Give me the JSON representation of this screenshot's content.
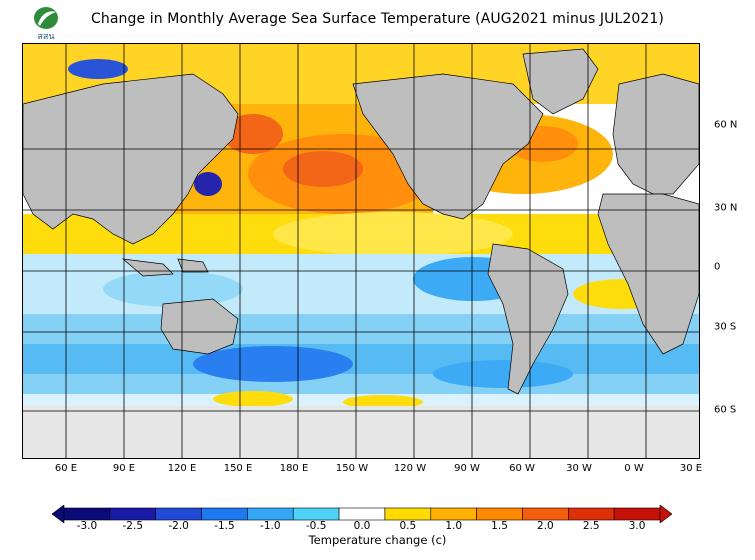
{
  "header": {
    "title": "Change in Monthly Average Sea Surface Temperature (AUG2021 minus JUL2021)",
    "logo_text": "สสน"
  },
  "map": {
    "lon_labels": [
      "60 E",
      "90 E",
      "120 E",
      "150 E",
      "180 E",
      "150 W",
      "120 W",
      "90 W",
      "60 W",
      "30 W",
      "0 W",
      "30 E"
    ],
    "lat_labels": [
      "60 N",
      "30 N",
      "0",
      "30 S",
      "60 S"
    ],
    "colors": {
      "land": "#bebebe",
      "ice": "#e6e6e6",
      "background": "#ffffff",
      "grid": "#000000"
    }
  },
  "colorbar": {
    "label": "Temperature change  (c)",
    "ticks": [
      "-3.0",
      "-2.5",
      "-2.0",
      "-1.5",
      "-1.0",
      "-0.5",
      "0.0",
      "0.5",
      "1.0",
      "1.5",
      "2.0",
      "2.5",
      "3.0"
    ],
    "colors": [
      "#0a0a78",
      "#1a1aa8",
      "#1f4bd6",
      "#1e78f0",
      "#33a6f5",
      "#4fd2f7",
      "#ffffff",
      "#ffdc00",
      "#ffb000",
      "#ff8800",
      "#f35d0b",
      "#de3008",
      "#c8100a"
    ],
    "units": "c"
  }
}
